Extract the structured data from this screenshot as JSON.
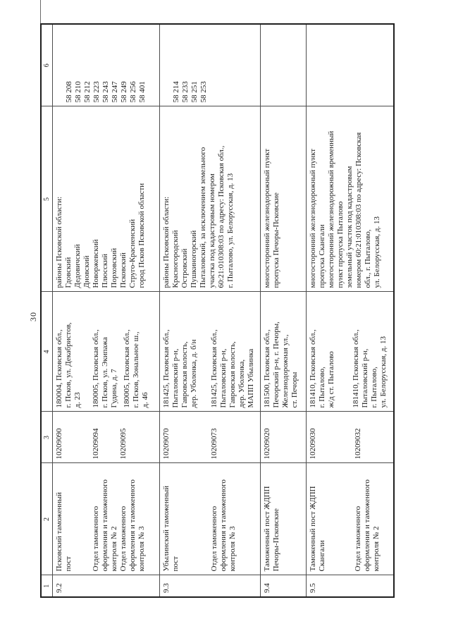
{
  "page": {
    "number": "30"
  },
  "table": {
    "headers": [
      "1",
      "2",
      "3",
      "4",
      "5",
      "6"
    ],
    "rows": [
      {
        "num": "9.2",
        "name": [
          "Псковский таможенный\nпост",
          "Отдел таможенного\nоформления и таможенного\nконтроля № 2",
          "Отдел таможенного\nоформления и таможенного\nконтроля № 3"
        ],
        "codes": [
          "10209090",
          "10209094",
          "10209095"
        ],
        "addresses": [
          "180004, Псковская обл.,\nг. Псков, ул. Декабристов,\nд. 23",
          "180005, Псковская обл.,\nг. Псков, ул. Экипажа\nГудина, д. 7",
          "180005, Псковская обл.,\nг. Псков, Зональное ш.,\nд. 46"
        ],
        "region": [
          "районы Псковской области:\nГдовский\nДедовичский\nДновский\nНоворжевский\nПлюсский\nПорховский\nПсковский\nСтруго-Красненский\nгород Псков Псковской области"
        ],
        "indexes": [
          "58 208\n58 210\n58 212\n58 223\n58 243\n58 247\n58 249\n58 256\n58 401"
        ]
      },
      {
        "num": "9.3",
        "name": [
          "Убылинский таможенный\nпост",
          "Отдел таможенного\nоформления и таможенного\nконтроля № 3"
        ],
        "codes": [
          "10209070",
          "10209073"
        ],
        "addresses": [
          "181425, Псковская обл.,\nПыталовский р-н,\nГавровская волость,\nдер. Уболенка, д. б/н",
          "181425, Псковская обл.,\nПыталовский р-н,\nГавровская волость,\nдер. Уболенка,\nМАПП Убылинка"
        ],
        "region": [
          "районы Псковской области:\nКрасногородский\nОстровский\nПушкиногорский\nПыталовский, за исключением земельного\nучастка под кадастровым номером\n60:21:010308:03 по адресу: Псковская обл.,\nг. Пыталово, ул. Белорусская, д. 13"
        ],
        "indexes": [
          "58 214\n58 233\n58 251\n58 253"
        ]
      },
      {
        "num": "9.4",
        "name": [
          "Таможенный пост ЖДПП\nПечоры-Псковские"
        ],
        "codes": [
          "10209020"
        ],
        "addresses": [
          "181500, Псковская обл.,\nПечорский р-н, г. Печоры,\nЖелезнодорожная ул.,\nст. Печоры"
        ],
        "region": [
          "многосторонний железнодорожный пункт\nпропуска Печоры-Псковские"
        ],
        "indexes": []
      },
      {
        "num": "9.5",
        "name": [
          "Таможенный пост ЖДПП\nСкангали",
          "Отдел таможенного\nоформления и таможенного\nконтроля № 2"
        ],
        "codes": [
          "10209030",
          "10209032"
        ],
        "addresses": [
          "181410, Псковская обл.,\nг. Пыталово,\nж/д ст. Пыталово",
          "181410, Псковская обл.,\nПыталовский р-н,\nг. Пыталово,\nул. Белорусская, д. 13"
        ],
        "region": [
          "многосторонний железнодорожный пункт\nпропуска Скангали\nмногосторонний железнодорожный временный\nпункт пропуска Пыталово\nземельный участок под кадастровым\nномером 60:21:010308:03 по адресу: Псковская\nобл., г. Пыталово,\nул. Белорусская, д. 13"
        ],
        "indexes": []
      }
    ]
  }
}
